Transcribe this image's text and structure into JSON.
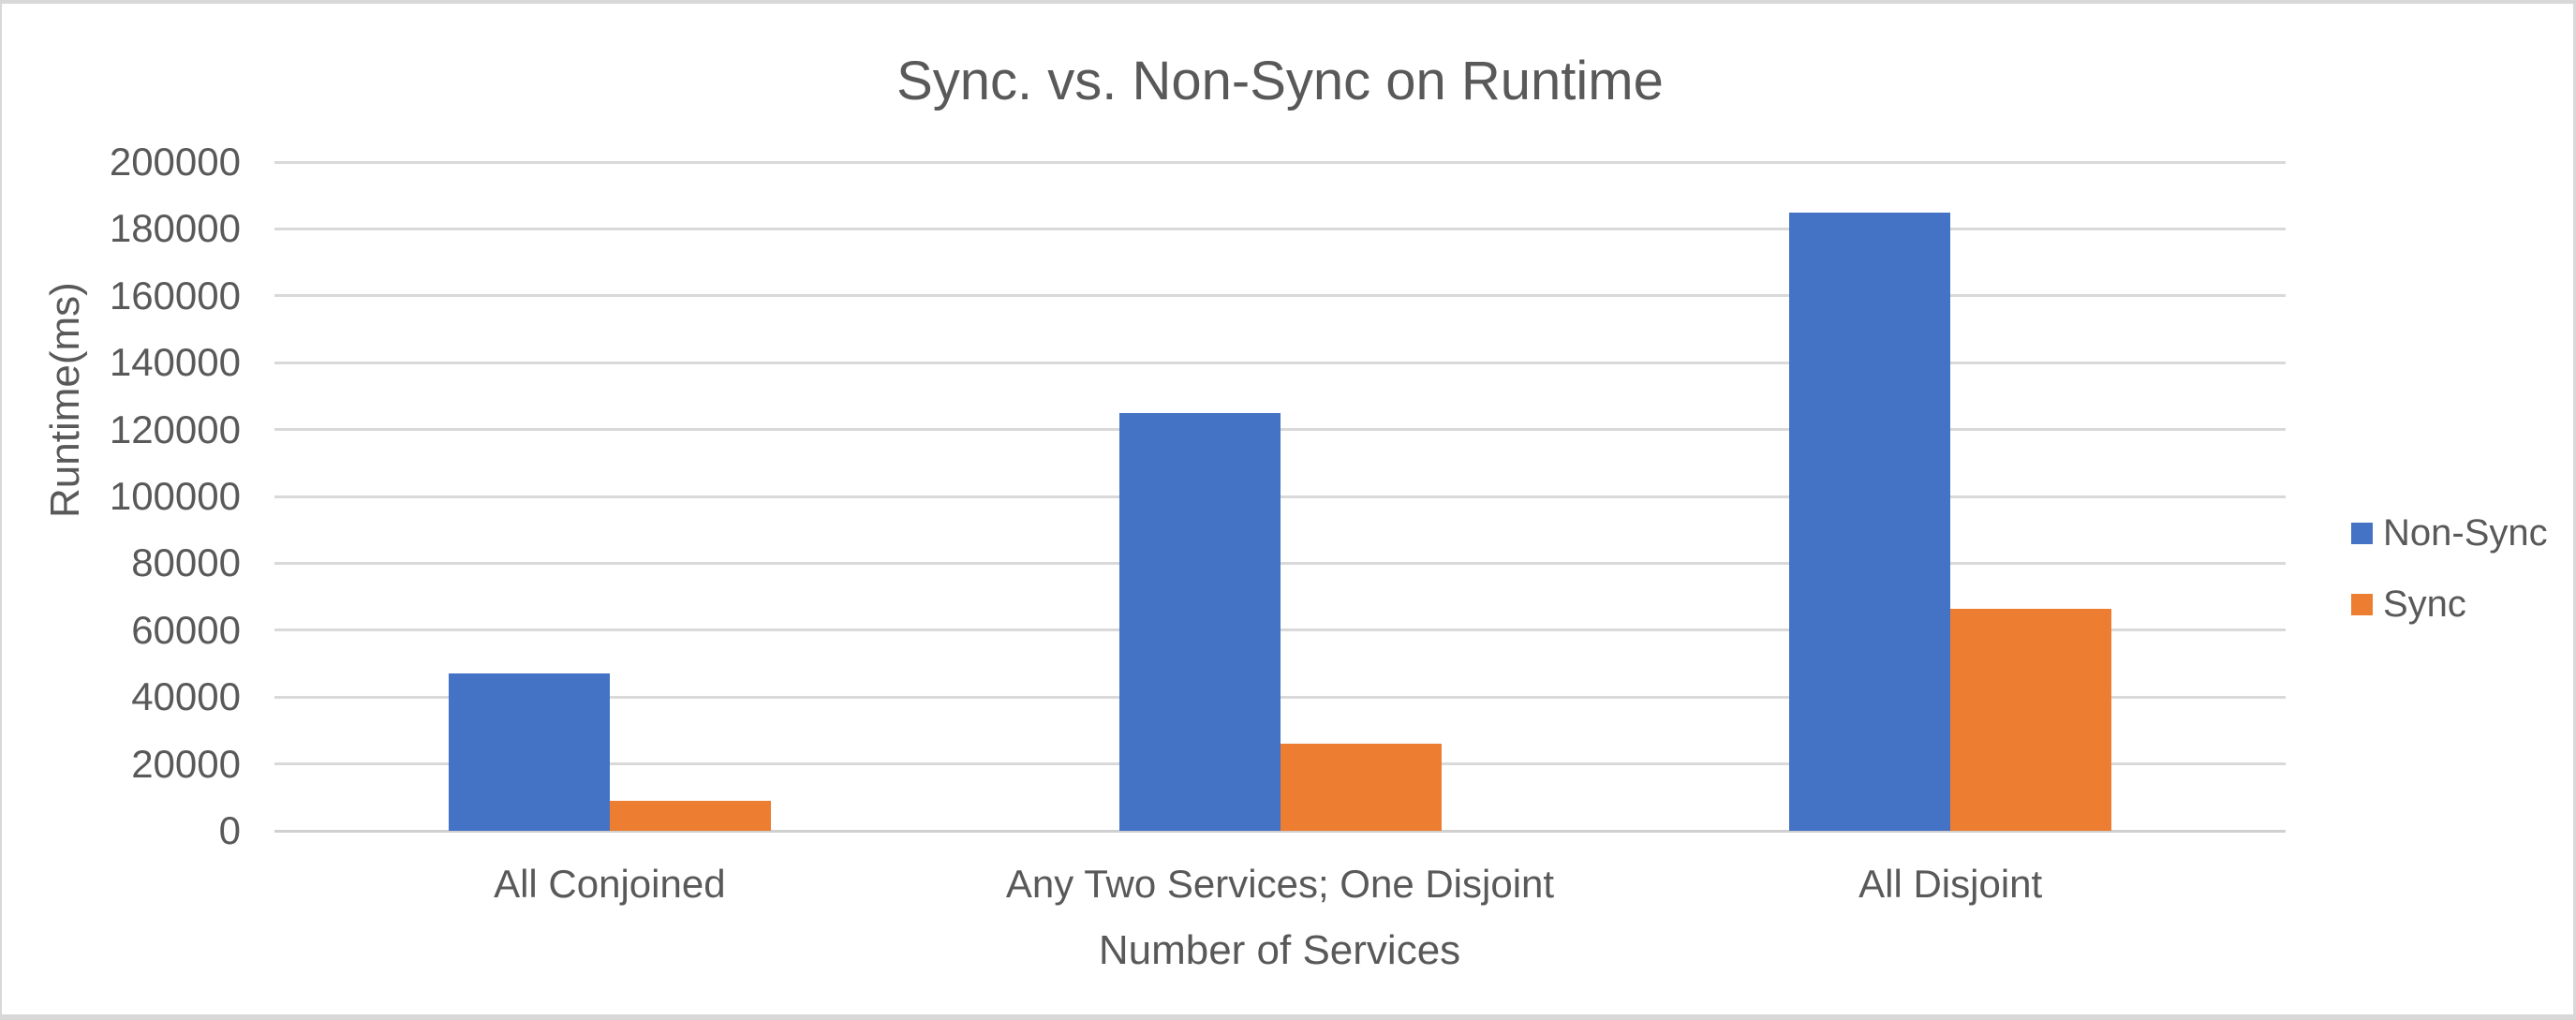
{
  "chart_data": {
    "type": "bar",
    "title": "Sync. vs. Non-Sync on Runtime",
    "xlabel": "Number of Services",
    "ylabel": "Runtime(ms)",
    "categories": [
      "All Conjoined",
      "Any Two Services; One Disjoint",
      "All Disjoint"
    ],
    "series": [
      {
        "name": "Non-Sync",
        "color": "#4472C4",
        "values": [
          47000,
          125000,
          185000
        ]
      },
      {
        "name": "Sync",
        "color": "#ED7D31",
        "values": [
          9000,
          26000,
          66500
        ]
      }
    ],
    "ylim": [
      0,
      200000
    ],
    "ytick_step": 20000,
    "ytick_labels": [
      "0",
      "20000",
      "40000",
      "60000",
      "80000",
      "100000",
      "120000",
      "140000",
      "160000",
      "180000",
      "200000"
    ],
    "grid": true,
    "legend_position": "right"
  },
  "colors": {
    "text": "#595959",
    "gridline": "#D9D9D9",
    "axis_line": "#D0D0D0",
    "frame_border": "#D8D8D8",
    "background": "#FFFFFF"
  }
}
